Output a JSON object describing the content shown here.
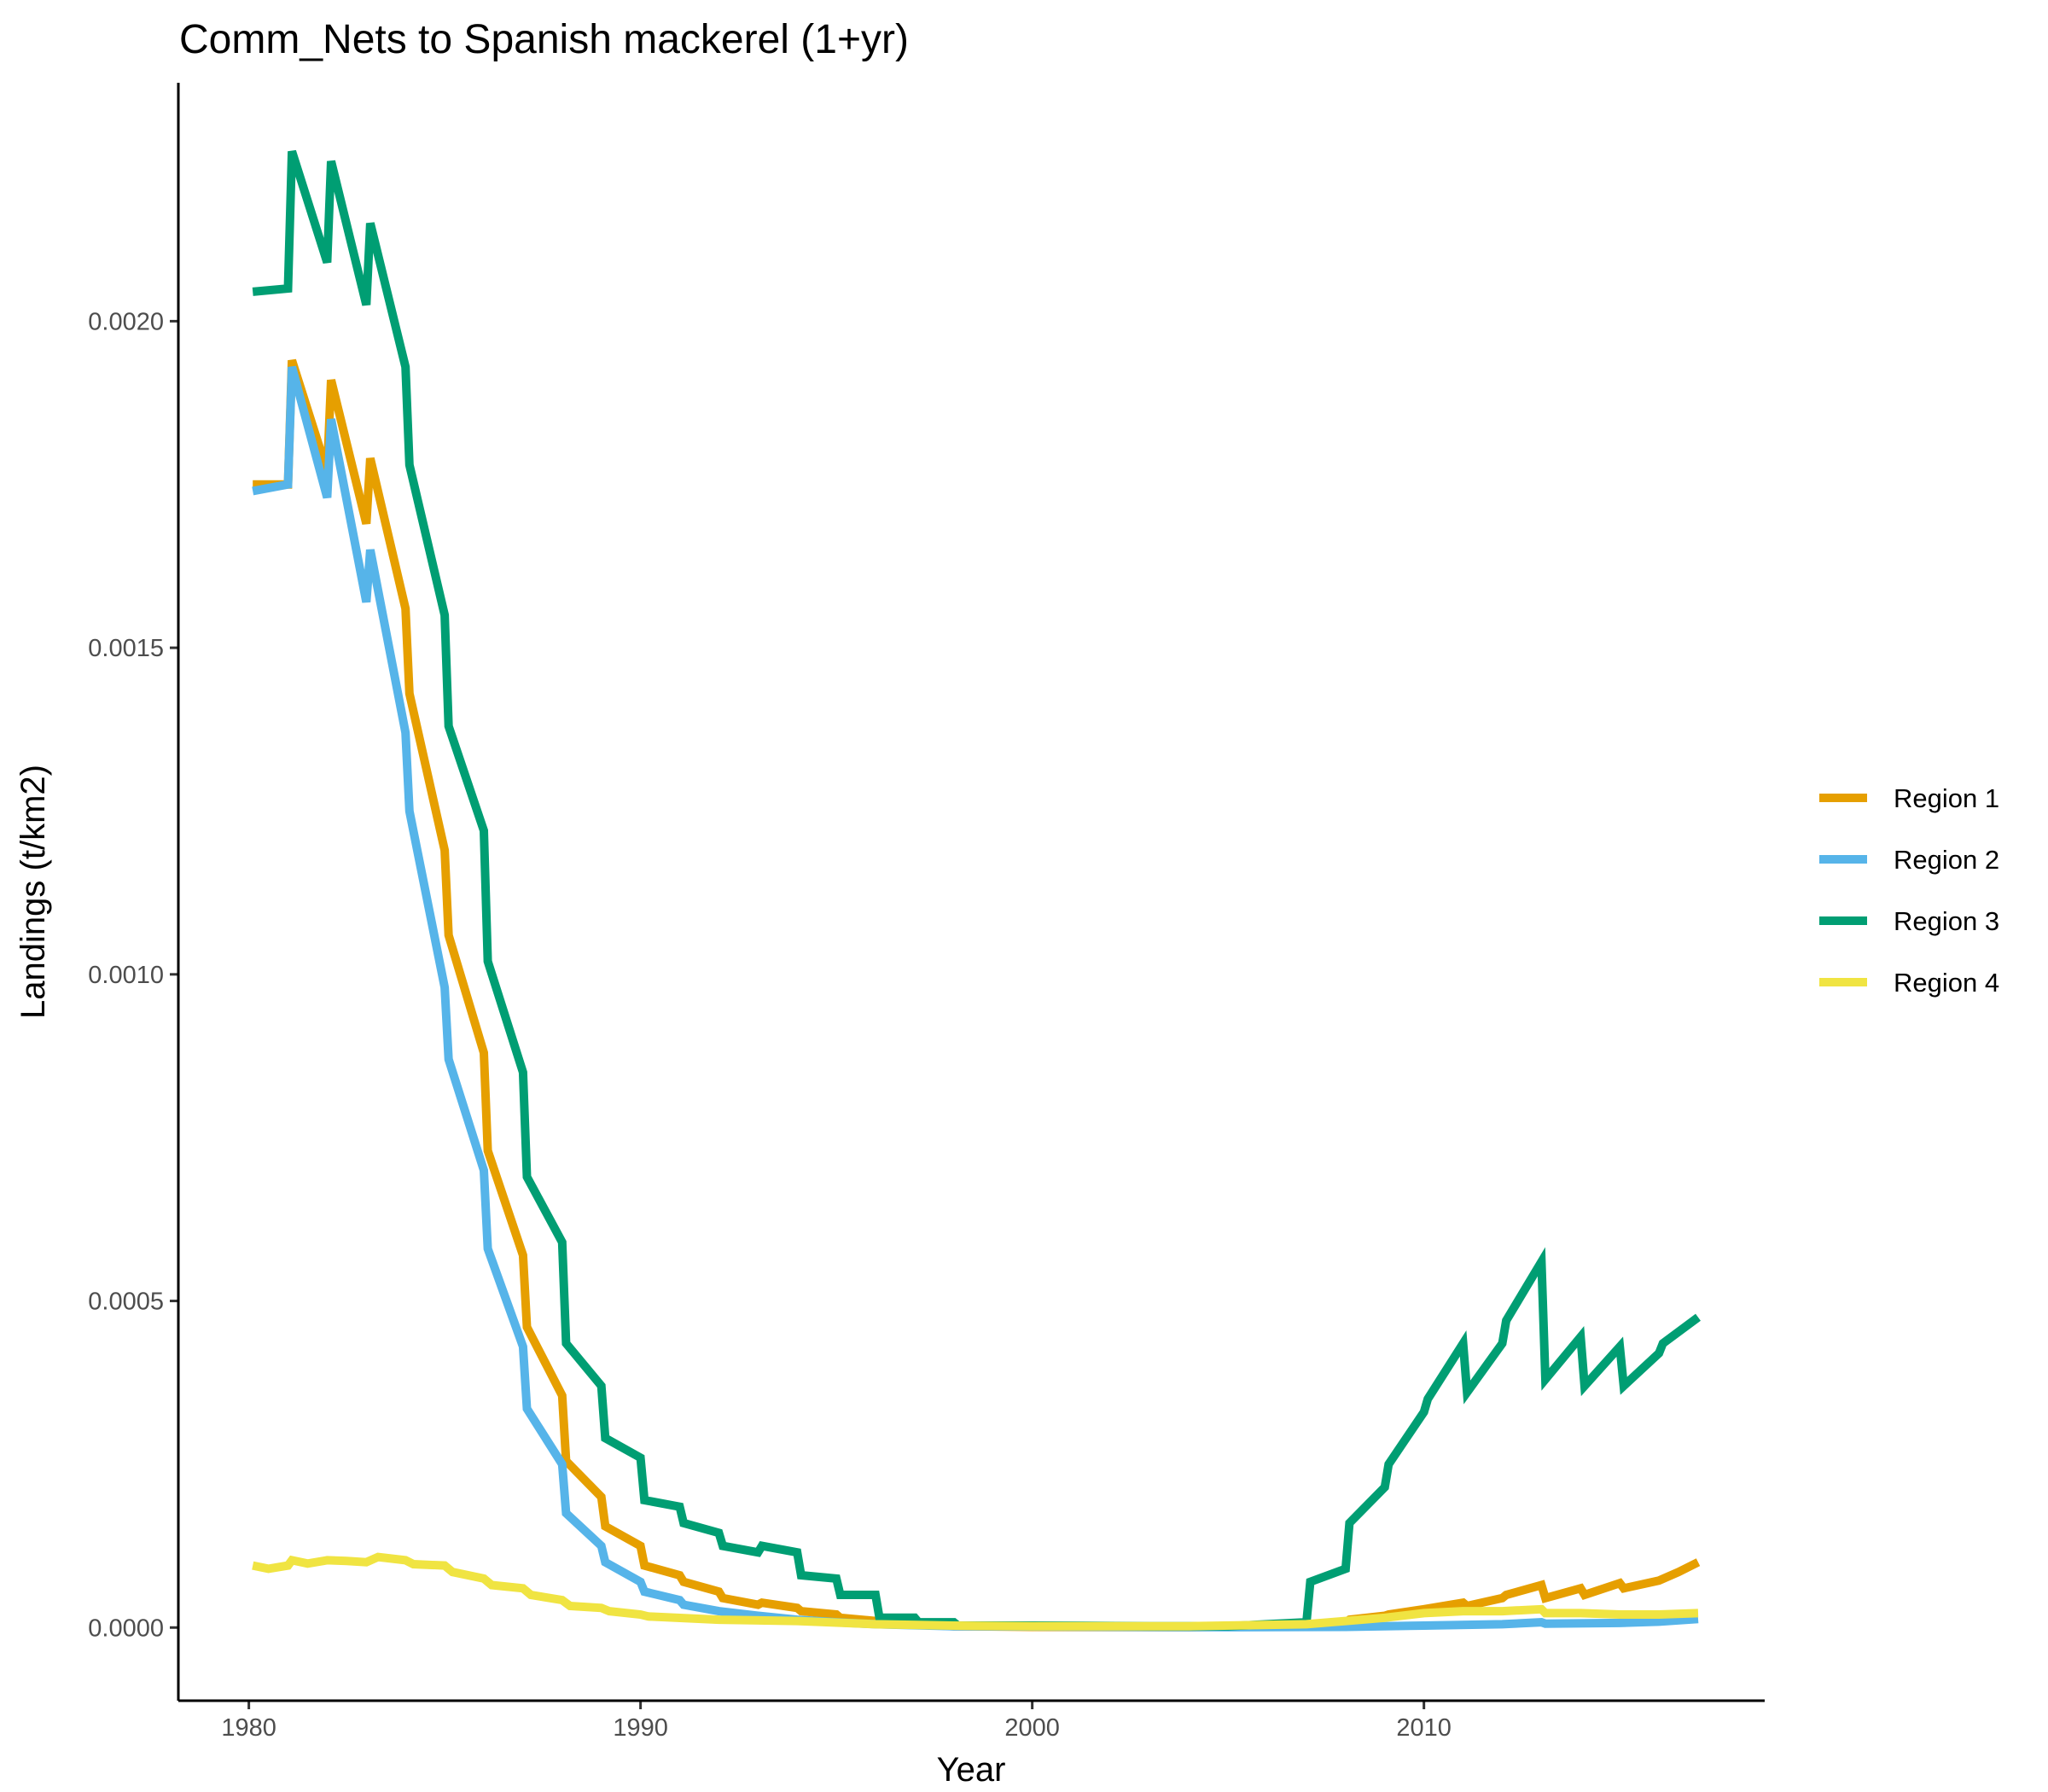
{
  "chart_data": {
    "type": "line",
    "title": "Comm_Nets to Spanish mackerel (1+yr)",
    "xlabel": "Year",
    "ylabel": "Landings (t/km2)",
    "xlim": [
      1978.2,
      2018.7
    ],
    "ylim": [
      -0.000112,
      0.002365
    ],
    "x_ticks": [
      1980,
      1990,
      2000,
      2010
    ],
    "x_tick_labels": [
      "1980",
      "1990",
      "2000",
      "2010"
    ],
    "y_ticks": [
      0,
      0.0005,
      0.001,
      0.0015,
      0.002
    ],
    "y_tick_labels": [
      "0.0000",
      "0.0005",
      "0.0010",
      "0.0015",
      "0.0020"
    ],
    "grid": false,
    "legend_position": "right",
    "series": [
      {
        "name": "Region 1",
        "color": "#E69F00",
        "points": [
          [
            1980.1,
            0.00175
          ],
          [
            1981.0,
            0.00175
          ],
          [
            1981.1,
            0.00194
          ],
          [
            1982.0,
            0.00177
          ],
          [
            1982.1,
            0.00191
          ],
          [
            1983.0,
            0.00169
          ],
          [
            1983.1,
            0.00179
          ],
          [
            1984.0,
            0.00156
          ],
          [
            1984.1,
            0.00143
          ],
          [
            1985.0,
            0.00119
          ],
          [
            1985.1,
            0.00106
          ],
          [
            1986.0,
            0.00088
          ],
          [
            1986.1,
            0.00073
          ],
          [
            1987.0,
            0.00057
          ],
          [
            1987.1,
            0.00046
          ],
          [
            1988.0,
            0.000355
          ],
          [
            1988.1,
            0.000255
          ],
          [
            1989.0,
            0.0002
          ],
          [
            1989.1,
            0.000155
          ],
          [
            1990.0,
            0.000125
          ],
          [
            1990.1,
            9.5e-05
          ],
          [
            1991.0,
            8e-05
          ],
          [
            1991.1,
            7e-05
          ],
          [
            1992.0,
            5.5e-05
          ],
          [
            1992.1,
            4.5e-05
          ],
          [
            1993.0,
            3.5e-05
          ],
          [
            1993.1,
            3.8e-05
          ],
          [
            1994.0,
            3e-05
          ],
          [
            1994.1,
            2.5e-05
          ],
          [
            1995.0,
            2e-05
          ],
          [
            1995.1,
            1.5e-05
          ],
          [
            1996.0,
            1e-05
          ],
          [
            1997.0,
            5e-06
          ],
          [
            1998.0,
            2e-06
          ],
          [
            2000.0,
            1e-06
          ],
          [
            2004.0,
            5e-07
          ],
          [
            2007.0,
            3e-06
          ],
          [
            2008.0,
            8e-06
          ],
          [
            2008.1,
            1.2e-05
          ],
          [
            2009.0,
            1.8e-05
          ],
          [
            2009.1,
            2e-05
          ],
          [
            2010.0,
            2.8e-05
          ],
          [
            2011.0,
            3.8e-05
          ],
          [
            2011.1,
            3.3e-05
          ],
          [
            2012.0,
            4.5e-05
          ],
          [
            2012.1,
            5e-05
          ],
          [
            2013.0,
            6.5e-05
          ],
          [
            2013.1,
            4.5e-05
          ],
          [
            2014.0,
            6e-05
          ],
          [
            2014.1,
            5e-05
          ],
          [
            2015.0,
            6.8e-05
          ],
          [
            2015.1,
            6e-05
          ],
          [
            2016.0,
            7.2e-05
          ],
          [
            2016.5,
            8.5e-05
          ],
          [
            2017.0,
            0.0001
          ]
        ]
      },
      {
        "name": "Region 2",
        "color": "#56B4E9",
        "points": [
          [
            1980.1,
            0.00174
          ],
          [
            1981.0,
            0.00175
          ],
          [
            1981.1,
            0.00193
          ],
          [
            1982.0,
            0.00173
          ],
          [
            1982.1,
            0.00185
          ],
          [
            1983.0,
            0.00157
          ],
          [
            1983.1,
            0.00165
          ],
          [
            1984.0,
            0.00137
          ],
          [
            1984.1,
            0.00125
          ],
          [
            1985.0,
            0.00098
          ],
          [
            1985.1,
            0.00087
          ],
          [
            1986.0,
            0.0007
          ],
          [
            1986.1,
            0.00058
          ],
          [
            1987.0,
            0.00043
          ],
          [
            1987.1,
            0.000335
          ],
          [
            1988.0,
            0.00025
          ],
          [
            1988.1,
            0.000175
          ],
          [
            1989.0,
            0.000125
          ],
          [
            1989.1,
            0.0001
          ],
          [
            1990.0,
            7e-05
          ],
          [
            1990.1,
            5.5e-05
          ],
          [
            1991.0,
            4.2e-05
          ],
          [
            1991.1,
            3.5e-05
          ],
          [
            1992.0,
            2.5e-05
          ],
          [
            1993.0,
            1.8e-05
          ],
          [
            1994.0,
            1.2e-05
          ],
          [
            1995.0,
            8e-06
          ],
          [
            1996.0,
            5e-06
          ],
          [
            1998.0,
            2e-06
          ],
          [
            2005.0,
            5e-07
          ],
          [
            2008.0,
            1e-06
          ],
          [
            2010.0,
            3e-06
          ],
          [
            2012.0,
            5e-06
          ],
          [
            2013.0,
            8e-06
          ],
          [
            2013.1,
            6e-06
          ],
          [
            2015.0,
            7e-06
          ],
          [
            2016.0,
            9e-06
          ],
          [
            2017.0,
            1.3e-05
          ]
        ]
      },
      {
        "name": "Region 3",
        "color": "#009E73",
        "points": [
          [
            1980.1,
            0.002045
          ],
          [
            1981.0,
            0.00205
          ],
          [
            1981.1,
            0.00226
          ],
          [
            1982.0,
            0.00209
          ],
          [
            1982.1,
            0.002245
          ],
          [
            1983.0,
            0.002025
          ],
          [
            1983.1,
            0.00215
          ],
          [
            1984.0,
            0.00193
          ],
          [
            1984.1,
            0.00178
          ],
          [
            1985.0,
            0.00155
          ],
          [
            1985.1,
            0.00138
          ],
          [
            1986.0,
            0.00122
          ],
          [
            1986.1,
            0.00102
          ],
          [
            1987.0,
            0.00085
          ],
          [
            1987.1,
            0.00069
          ],
          [
            1988.0,
            0.00059
          ],
          [
            1988.1,
            0.000435
          ],
          [
            1989.0,
            0.00037
          ],
          [
            1989.1,
            0.00029
          ],
          [
            1990.0,
            0.00026
          ],
          [
            1990.1,
            0.000195
          ],
          [
            1991.0,
            0.000185
          ],
          [
            1991.1,
            0.00016
          ],
          [
            1992.0,
            0.000145
          ],
          [
            1992.1,
            0.000125
          ],
          [
            1993.0,
            0.000115
          ],
          [
            1993.1,
            0.000125
          ],
          [
            1994.0,
            0.000115
          ],
          [
            1994.1,
            8e-05
          ],
          [
            1995.0,
            7.5e-05
          ],
          [
            1995.1,
            5e-05
          ],
          [
            1996.0,
            5e-05
          ],
          [
            1996.1,
            1.5e-05
          ],
          [
            1997.0,
            1.5e-05
          ],
          [
            1997.1,
            8e-06
          ],
          [
            1998.0,
            8e-06
          ],
          [
            1998.1,
            3e-06
          ],
          [
            2000.0,
            3e-06
          ],
          [
            2003.0,
            2e-06
          ],
          [
            2005.0,
            2e-06
          ],
          [
            2006.0,
            5e-06
          ],
          [
            2007.0,
            8e-06
          ],
          [
            2007.1,
            7e-05
          ],
          [
            2008.0,
            9e-05
          ],
          [
            2008.1,
            0.00016
          ],
          [
            2009.0,
            0.000215
          ],
          [
            2009.1,
            0.00025
          ],
          [
            2010.0,
            0.00033
          ],
          [
            2010.1,
            0.00035
          ],
          [
            2011.0,
            0.000435
          ],
          [
            2011.1,
            0.00036
          ],
          [
            2012.0,
            0.000435
          ],
          [
            2012.1,
            0.00047
          ],
          [
            2013.0,
            0.00056
          ],
          [
            2013.1,
            0.00038
          ],
          [
            2014.0,
            0.000445
          ],
          [
            2014.1,
            0.00037
          ],
          [
            2015.0,
            0.00043
          ],
          [
            2015.1,
            0.00037
          ],
          [
            2016.0,
            0.00042
          ],
          [
            2016.1,
            0.000435
          ],
          [
            2017.0,
            0.000475
          ]
        ]
      },
      {
        "name": "Region 4",
        "color": "#F0E442",
        "points": [
          [
            1980.1,
            9.5e-05
          ],
          [
            1980.5,
            9e-05
          ],
          [
            1981.0,
            9.5e-05
          ],
          [
            1981.1,
            0.000103
          ],
          [
            1981.5,
            9.8e-05
          ],
          [
            1982.0,
            0.000103
          ],
          [
            1982.5,
            0.000102
          ],
          [
            1983.0,
            0.0001
          ],
          [
            1983.3,
            0.000108
          ],
          [
            1984.0,
            0.000103
          ],
          [
            1984.2,
            9.7e-05
          ],
          [
            1985.0,
            9.5e-05
          ],
          [
            1985.2,
            8.5e-05
          ],
          [
            1986.0,
            7.5e-05
          ],
          [
            1986.2,
            6.5e-05
          ],
          [
            1987.0,
            6e-05
          ],
          [
            1987.2,
            5e-05
          ],
          [
            1988.0,
            4.2e-05
          ],
          [
            1988.2,
            3.3e-05
          ],
          [
            1989.0,
            3e-05
          ],
          [
            1989.2,
            2.5e-05
          ],
          [
            1990.0,
            2e-05
          ],
          [
            1990.2,
            1.7e-05
          ],
          [
            1992.0,
            1.2e-05
          ],
          [
            1994.0,
            1e-05
          ],
          [
            1996.0,
            5e-06
          ],
          [
            1998.0,
            3e-06
          ],
          [
            2000.0,
            2e-06
          ],
          [
            2004.0,
            2e-06
          ],
          [
            2007.0,
            5e-06
          ],
          [
            2008.0,
            1e-05
          ],
          [
            2009.0,
            1.5e-05
          ],
          [
            2010.0,
            2.2e-05
          ],
          [
            2011.0,
            2.5e-05
          ],
          [
            2012.0,
            2.5e-05
          ],
          [
            2013.0,
            2.8e-05
          ],
          [
            2013.1,
            2.2e-05
          ],
          [
            2014.0,
            2.2e-05
          ],
          [
            2015.0,
            2e-05
          ],
          [
            2016.0,
            2e-05
          ],
          [
            2017.0,
            2.2e-05
          ]
        ]
      }
    ]
  }
}
